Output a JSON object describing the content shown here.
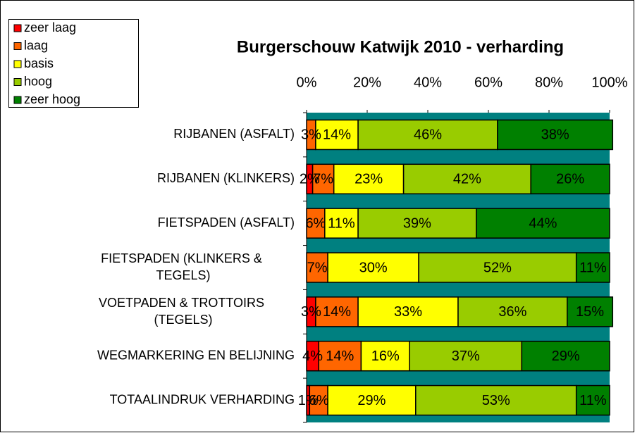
{
  "chart_data": {
    "type": "stacked_bar_horizontal",
    "title": "Burgerschouw Katwijk 2010 - verharding",
    "categories": [
      "RIJBANEN (ASFALT)",
      "RIJBANEN (KLINKERS)",
      "FIETSPADEN (ASFALT)",
      "FIETSPADEN (KLINKERS & TEGELS)",
      "VOETPADEN & TROTTOIRS (TEGELS)",
      "WEGMARKERING EN BELIJNING",
      "TOTAALINDRUK VERHARDING"
    ],
    "series": [
      {
        "name": "zeer laag",
        "color": "#ff0000",
        "values": [
          null,
          2,
          null,
          null,
          3,
          4,
          1
        ],
        "value_labels": [
          null,
          "2%",
          null,
          null,
          "3%",
          "4%",
          "1%"
        ]
      },
      {
        "name": "laag",
        "color": "#ff6600",
        "values": [
          3,
          7,
          6,
          7,
          14,
          14,
          6
        ],
        "value_labels": [
          "3%",
          "7%",
          "6%",
          "7%",
          "14%",
          "14%",
          "6%"
        ]
      },
      {
        "name": "basis",
        "color": "#ffff00",
        "values": [
          14,
          23,
          11,
          30,
          33,
          16,
          29
        ],
        "value_labels": [
          "14%",
          "23%",
          "11%",
          "30%",
          "33%",
          "16%",
          "29%"
        ]
      },
      {
        "name": "hoog",
        "color": "#99cc00",
        "values": [
          46,
          42,
          39,
          52,
          36,
          37,
          53
        ],
        "value_labels": [
          "46%",
          "42%",
          "39%",
          "52%",
          "36%",
          "37%",
          "53%"
        ]
      },
      {
        "name": "zeer hoog",
        "color": "#008000",
        "values": [
          38,
          26,
          44,
          11,
          15,
          29,
          11
        ],
        "value_labels": [
          "38%",
          "26%",
          "44%",
          "11%",
          "15%",
          "29%",
          "11%"
        ]
      }
    ],
    "xlim": [
      0,
      100
    ],
    "xticks": [
      {
        "value": 0,
        "label": "0%"
      },
      {
        "value": 20,
        "label": "20%"
      },
      {
        "value": 40,
        "label": "40%"
      },
      {
        "value": 60,
        "label": "60%"
      },
      {
        "value": 80,
        "label": "80%"
      },
      {
        "value": 100,
        "label": "100%"
      }
    ],
    "plot_background": "#008080"
  }
}
